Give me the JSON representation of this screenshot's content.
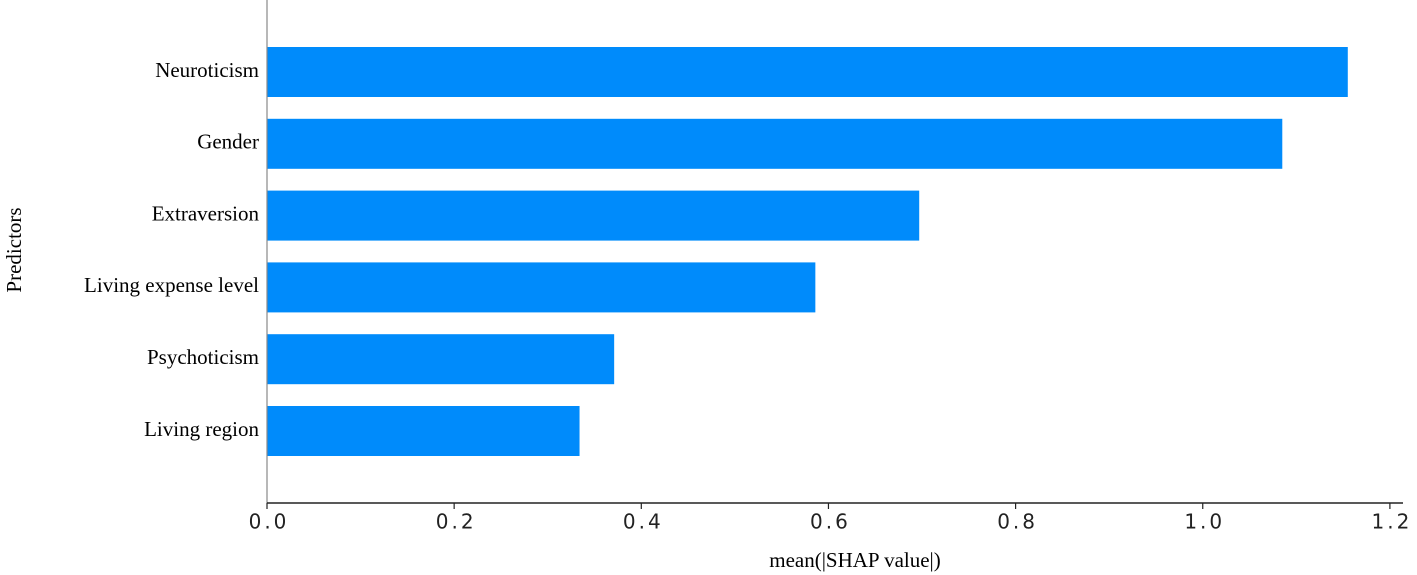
{
  "chart_data": {
    "type": "barh",
    "categories": [
      "Neuroticism",
      "Gender",
      "Extraversion",
      "Living expense level",
      "Psychoticism",
      "Living region"
    ],
    "values": [
      1.155,
      1.085,
      0.697,
      0.586,
      0.371,
      0.334
    ],
    "color": "#008bfb",
    "xlabel": "mean(|SHAP value|)",
    "ylabel": "Predictors",
    "xlim": [
      0,
      1.214
    ],
    "xticks": [
      {
        "value": 0,
        "label": "0.0"
      },
      0.2,
      0.4,
      0.6,
      0.8,
      {
        "value": 1,
        "label": "1.0"
      },
      1.2
    ]
  }
}
